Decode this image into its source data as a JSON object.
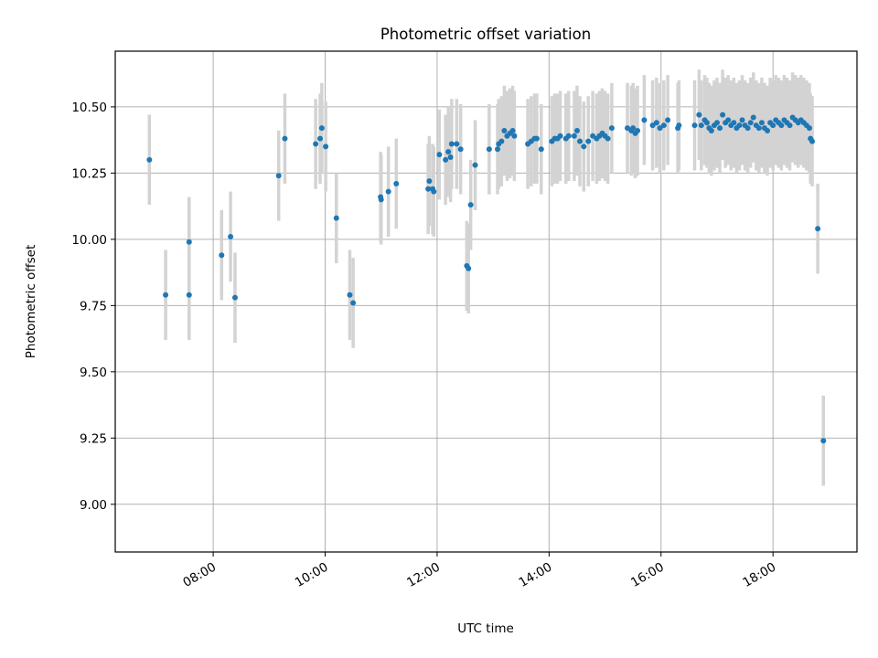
{
  "chart_data": {
    "type": "scatter",
    "title": "Photometric offset variation",
    "xlabel": "UTC time",
    "ylabel": "Photometric offset",
    "x_unit": "hours UTC",
    "xlim": [
      6.25,
      19.5
    ],
    "ylim": [
      8.82,
      10.71
    ],
    "x_ticks": [
      8,
      10,
      12,
      14,
      16,
      18
    ],
    "x_tick_labels": [
      "08:00",
      "10:00",
      "12:00",
      "14:00",
      "16:00",
      "18:00"
    ],
    "y_ticks": [
      9.0,
      9.25,
      9.5,
      9.75,
      10.0,
      10.25,
      10.5
    ],
    "y_tick_labels": [
      "9.00",
      "9.25",
      "9.50",
      "9.75",
      "10.00",
      "10.25",
      "10.50"
    ],
    "grid": true,
    "error_halfwidth": 0.17,
    "marker_color": "#1f77b4",
    "errorbar_color": "#d3d3d3",
    "points": [
      [
        6.86,
        10.3
      ],
      [
        7.15,
        9.79
      ],
      [
        7.57,
        9.99
      ],
      [
        7.57,
        9.79
      ],
      [
        8.15,
        9.94
      ],
      [
        8.31,
        10.01
      ],
      [
        8.39,
        9.78
      ],
      [
        9.17,
        10.24
      ],
      [
        9.28,
        10.38
      ],
      [
        9.83,
        10.36
      ],
      [
        9.91,
        10.38
      ],
      [
        9.94,
        10.42
      ],
      [
        10.01,
        10.35
      ],
      [
        10.2,
        10.08
      ],
      [
        10.44,
        9.79
      ],
      [
        10.5,
        9.76
      ],
      [
        10.99,
        10.16
      ],
      [
        11.0,
        10.15
      ],
      [
        11.13,
        10.18
      ],
      [
        11.27,
        10.21
      ],
      [
        11.84,
        10.19
      ],
      [
        11.86,
        10.22
      ],
      [
        11.92,
        10.19
      ],
      [
        11.94,
        10.18
      ],
      [
        12.04,
        10.32
      ],
      [
        12.15,
        10.3
      ],
      [
        12.2,
        10.33
      ],
      [
        12.24,
        10.31
      ],
      [
        12.26,
        10.36
      ],
      [
        12.35,
        10.36
      ],
      [
        12.42,
        10.34
      ],
      [
        12.53,
        9.9
      ],
      [
        12.56,
        9.89
      ],
      [
        12.6,
        10.13
      ],
      [
        12.68,
        10.28
      ],
      [
        12.93,
        10.34
      ],
      [
        13.08,
        10.34
      ],
      [
        13.1,
        10.36
      ],
      [
        13.15,
        10.37
      ],
      [
        13.2,
        10.41
      ],
      [
        13.25,
        10.39
      ],
      [
        13.3,
        10.4
      ],
      [
        13.35,
        10.41
      ],
      [
        13.38,
        10.39
      ],
      [
        13.62,
        10.36
      ],
      [
        13.68,
        10.37
      ],
      [
        13.74,
        10.38
      ],
      [
        13.78,
        10.38
      ],
      [
        13.86,
        10.34
      ],
      [
        14.05,
        10.37
      ],
      [
        14.1,
        10.38
      ],
      [
        14.15,
        10.38
      ],
      [
        14.2,
        10.39
      ],
      [
        14.3,
        10.38
      ],
      [
        14.35,
        10.39
      ],
      [
        14.45,
        10.39
      ],
      [
        14.5,
        10.41
      ],
      [
        14.55,
        10.37
      ],
      [
        14.62,
        10.35
      ],
      [
        14.7,
        10.37
      ],
      [
        14.78,
        10.39
      ],
      [
        14.85,
        10.38
      ],
      [
        14.9,
        10.39
      ],
      [
        14.95,
        10.4
      ],
      [
        15.0,
        10.39
      ],
      [
        15.05,
        10.38
      ],
      [
        15.12,
        10.42
      ],
      [
        15.4,
        10.42
      ],
      [
        15.47,
        10.41
      ],
      [
        15.5,
        10.42
      ],
      [
        15.54,
        10.4
      ],
      [
        15.58,
        10.41
      ],
      [
        15.7,
        10.45
      ],
      [
        15.85,
        10.43
      ],
      [
        15.92,
        10.44
      ],
      [
        15.98,
        10.42
      ],
      [
        16.05,
        10.43
      ],
      [
        16.12,
        10.45
      ],
      [
        16.3,
        10.42
      ],
      [
        16.32,
        10.43
      ],
      [
        16.6,
        10.43
      ],
      [
        16.68,
        10.47
      ],
      [
        16.72,
        10.43
      ],
      [
        16.78,
        10.45
      ],
      [
        16.82,
        10.44
      ],
      [
        16.86,
        10.42
      ],
      [
        16.9,
        10.41
      ],
      [
        16.95,
        10.43
      ],
      [
        17.0,
        10.44
      ],
      [
        17.05,
        10.42
      ],
      [
        17.1,
        10.47
      ],
      [
        17.15,
        10.44
      ],
      [
        17.2,
        10.45
      ],
      [
        17.25,
        10.43
      ],
      [
        17.3,
        10.44
      ],
      [
        17.35,
        10.42
      ],
      [
        17.4,
        10.43
      ],
      [
        17.45,
        10.45
      ],
      [
        17.5,
        10.43
      ],
      [
        17.55,
        10.42
      ],
      [
        17.6,
        10.44
      ],
      [
        17.65,
        10.46
      ],
      [
        17.7,
        10.43
      ],
      [
        17.75,
        10.42
      ],
      [
        17.8,
        10.44
      ],
      [
        17.85,
        10.42
      ],
      [
        17.9,
        10.41
      ],
      [
        17.95,
        10.44
      ],
      [
        18.0,
        10.43
      ],
      [
        18.05,
        10.45
      ],
      [
        18.1,
        10.44
      ],
      [
        18.15,
        10.43
      ],
      [
        18.2,
        10.45
      ],
      [
        18.25,
        10.44
      ],
      [
        18.3,
        10.43
      ],
      [
        18.35,
        10.46
      ],
      [
        18.4,
        10.45
      ],
      [
        18.45,
        10.44
      ],
      [
        18.5,
        10.45
      ],
      [
        18.55,
        10.44
      ],
      [
        18.6,
        10.43
      ],
      [
        18.65,
        10.42
      ],
      [
        18.67,
        10.38
      ],
      [
        18.7,
        10.37
      ],
      [
        18.8,
        10.04
      ],
      [
        18.9,
        9.24
      ]
    ]
  }
}
